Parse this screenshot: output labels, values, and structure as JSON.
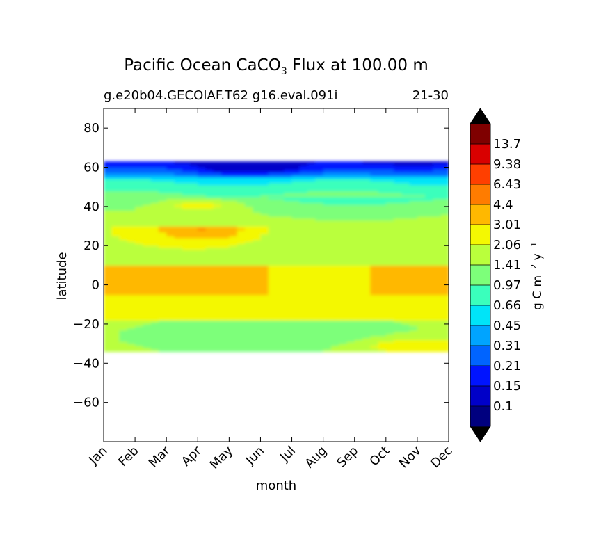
{
  "chart_data": {
    "type": "heatmap",
    "title": "Pacific Ocean CaCO",
    "title_subscript": "3",
    "title_suffix": " Flux at 100.00 m",
    "subtitle_left": "g.e20b04.GECOIAF.T62 g16.eval.091i",
    "subtitle_right": "21-30",
    "xlabel": "month",
    "ylabel": "latitude",
    "x_categories": [
      "Jan",
      "Feb",
      "Mar",
      "Apr",
      "May",
      "Jun",
      "Jul",
      "Aug",
      "Sep",
      "Oct",
      "Nov",
      "Dec"
    ],
    "ylim": [
      -80,
      90
    ],
    "yticks": [
      {
        "value": 80,
        "label": "80"
      },
      {
        "value": 60,
        "label": "60"
      },
      {
        "value": 40,
        "label": "40"
      },
      {
        "value": 20,
        "label": "20"
      },
      {
        "value": 0,
        "label": "0"
      },
      {
        "value": -20,
        "label": "−20"
      },
      {
        "value": -40,
        "label": "−40"
      },
      {
        "value": -60,
        "label": "−60"
      }
    ],
    "data_lat_range": [
      -34,
      63
    ],
    "contour_levels": [
      0.1,
      0.15,
      0.21,
      0.31,
      0.45,
      0.66,
      0.97,
      1.41,
      2.06,
      3.01,
      4.4,
      6.43,
      9.38,
      13.7
    ],
    "level_labels": [
      "0.1",
      "0.15",
      "0.21",
      "0.31",
      "0.45",
      "0.66",
      "0.97",
      "1.41",
      "2.06",
      "3.01",
      "4.4",
      "6.43",
      "9.38",
      "13.7"
    ],
    "colors": [
      "#00007f",
      "#0000c8",
      "#0014ff",
      "#0064ff",
      "#00a4ff",
      "#00e4f8",
      "#3affbc",
      "#7dff7a",
      "#baff3c",
      "#f4f802",
      "#ffb800",
      "#ff7c00",
      "#ff3f00",
      "#d90000",
      "#7f0000"
    ],
    "extend_color": "#000000",
    "colorbar_label": "g C m",
    "colorbar_label_exp1": "−2",
    "colorbar_label_mid": " y",
    "colorbar_label_exp2": "−1",
    "approximate_band_values": [
      {
        "lat_range": [
          55,
          63
        ],
        "description": "0.1 - 0.31"
      },
      {
        "lat_range": [
          45,
          55
        ],
        "description": "0.45 - 0.97"
      },
      {
        "lat_range": [
          30,
          45
        ],
        "description": "0.97 - 3.01"
      },
      {
        "lat_range": [
          10,
          30
        ],
        "description": "1.41 - 4.4"
      },
      {
        "lat_range": [
          -5,
          10
        ],
        "description": "3.01 - 4.4"
      },
      {
        "lat_range": [
          -18,
          -5
        ],
        "description": "2.06 - 3.01"
      },
      {
        "lat_range": [
          -34,
          -18
        ],
        "description": "0.66 - 2.06"
      }
    ]
  }
}
